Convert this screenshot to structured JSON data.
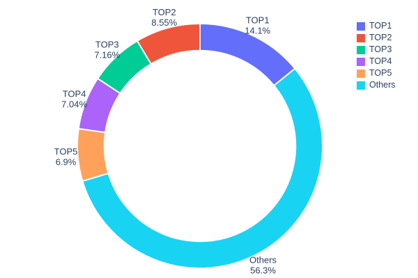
{
  "chart_data": {
    "type": "pie",
    "subtype": "donut",
    "title": "",
    "hole": 0.78,
    "slices": [
      {
        "label": "TOP1",
        "value": 14.1,
        "pct_text": "14.1%",
        "color": "#636EFA"
      },
      {
        "label": "TOP2",
        "value": 8.55,
        "pct_text": "8.55%",
        "color": "#EF553B"
      },
      {
        "label": "TOP3",
        "value": 7.16,
        "pct_text": "7.16%",
        "color": "#00CC96"
      },
      {
        "label": "TOP4",
        "value": 7.04,
        "pct_text": "7.04%",
        "color": "#AB63FA"
      },
      {
        "label": "TOP5",
        "value": 6.9,
        "pct_text": "6.9%",
        "color": "#FFA15A"
      },
      {
        "label": "Others",
        "value": 56.3,
        "pct_text": "56.3%",
        "color": "#19D3F3"
      }
    ],
    "legend": {
      "position": "right",
      "items": [
        "TOP1",
        "TOP2",
        "TOP3",
        "TOP4",
        "TOP5",
        "Others"
      ]
    },
    "layout_hints": {
      "start_at": "12-oclock",
      "display_order_clockwise": [
        "TOP1",
        "Others",
        "TOP5",
        "TOP4",
        "TOP3",
        "TOP2"
      ],
      "labels_outside": true,
      "background": "#ffffff",
      "text_color": "#2a3f5f",
      "slice_separator_color": "#ffffff"
    }
  }
}
